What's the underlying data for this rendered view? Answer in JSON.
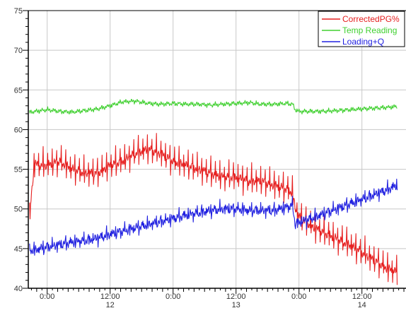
{
  "chart_data": {
    "type": "line",
    "title": "",
    "xlabel": "",
    "ylabel": "",
    "ylim": [
      40,
      75
    ],
    "yticks": [
      40,
      45,
      50,
      55,
      60,
      65,
      70,
      75
    ],
    "xlim": [
      -0.15,
      2.85
    ],
    "xticks": [
      {
        "x": 0,
        "label": "0:00",
        "sublabel": ""
      },
      {
        "x": 0.5,
        "label": "12:00",
        "sublabel": "12"
      },
      {
        "x": 1,
        "label": "0:00",
        "sublabel": ""
      },
      {
        "x": 1.5,
        "label": "12:00",
        "sublabel": "13"
      },
      {
        "x": 2,
        "label": "0:00",
        "sublabel": ""
      },
      {
        "x": 2.5,
        "label": "12:00",
        "sublabel": "14"
      }
    ],
    "grid": true,
    "legend_position": "top-right",
    "series": [
      {
        "name": "CorrectedPG%",
        "color": "#e62020",
        "x": [
          -0.14,
          -0.12,
          -0.1,
          -0.08,
          0.0,
          0.1,
          0.2,
          0.3,
          0.4,
          0.5,
          0.6,
          0.7,
          0.8,
          0.9,
          1.0,
          1.1,
          1.2,
          1.3,
          1.4,
          1.5,
          1.6,
          1.7,
          1.8,
          1.9,
          1.95,
          1.97,
          2.0,
          2.1,
          2.2,
          2.3,
          2.4,
          2.5,
          2.6,
          2.7,
          2.78
        ],
        "values": [
          49.0,
          52.5,
          56.0,
          55.5,
          55.5,
          56.0,
          55.0,
          54.5,
          54.5,
          55.5,
          56.0,
          57.0,
          57.5,
          57.0,
          56.0,
          55.5,
          55.0,
          54.5,
          54.0,
          54.0,
          53.5,
          53.5,
          53.0,
          52.5,
          52.0,
          50.0,
          49.0,
          47.8,
          47.0,
          46.2,
          45.5,
          44.5,
          43.5,
          42.5,
          42.0
        ],
        "spike_amplitude": 1.8
      },
      {
        "name": "Temp Reading",
        "color": "#40d030",
        "x": [
          -0.14,
          0.0,
          0.1,
          0.2,
          0.3,
          0.4,
          0.5,
          0.6,
          0.7,
          0.8,
          0.9,
          1.0,
          1.1,
          1.2,
          1.3,
          1.4,
          1.5,
          1.6,
          1.7,
          1.8,
          1.9,
          1.95,
          1.97,
          2.0,
          2.1,
          2.2,
          2.3,
          2.4,
          2.5,
          2.6,
          2.7,
          2.78
        ],
        "values": [
          62.2,
          62.5,
          62.3,
          62.2,
          62.4,
          62.6,
          63.0,
          63.5,
          63.6,
          63.3,
          63.2,
          63.3,
          63.2,
          63.2,
          63.1,
          63.2,
          63.3,
          63.4,
          63.2,
          63.2,
          63.3,
          63.2,
          62.5,
          62.3,
          62.3,
          62.3,
          62.4,
          62.5,
          62.6,
          62.7,
          62.8,
          62.9
        ],
        "spike_amplitude": 0.2
      },
      {
        "name": "Loading+Q",
        "color": "#2020e0",
        "x": [
          -0.14,
          -0.1,
          0.0,
          0.1,
          0.2,
          0.3,
          0.4,
          0.5,
          0.6,
          0.7,
          0.8,
          0.9,
          1.0,
          1.1,
          1.2,
          1.3,
          1.4,
          1.5,
          1.6,
          1.7,
          1.8,
          1.9,
          1.95,
          1.97,
          2.0,
          2.1,
          2.2,
          2.3,
          2.4,
          2.5,
          2.6,
          2.7,
          2.78
        ],
        "values": [
          44.8,
          44.8,
          45.2,
          45.5,
          45.8,
          46.0,
          46.3,
          46.8,
          47.2,
          47.6,
          48.0,
          48.4,
          48.8,
          49.2,
          49.5,
          49.8,
          50.0,
          50.0,
          49.8,
          49.8,
          49.8,
          50.2,
          50.4,
          48.0,
          48.3,
          48.8,
          49.4,
          50.0,
          50.6,
          51.2,
          51.8,
          52.4,
          53.0
        ],
        "spike_amplitude": 0.7
      }
    ]
  }
}
